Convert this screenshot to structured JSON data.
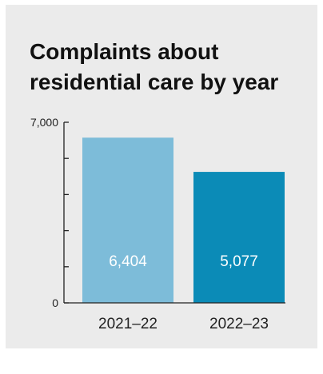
{
  "chart_data": {
    "type": "bar",
    "title": "Complaints about residential care by year",
    "categories": [
      "2021–22",
      "2022–23"
    ],
    "values": [
      6404,
      5077
    ],
    "value_labels": [
      "6,404",
      "5,077"
    ],
    "y_tick_labels": [
      {
        "value": 0,
        "label": "0"
      },
      {
        "value": 7000,
        "label": "7,000"
      }
    ],
    "y_minor_ticks": [
      1400,
      2800,
      4200,
      5600
    ],
    "ylim": [
      0,
      7000
    ],
    "xlabel": "",
    "ylabel": "",
    "grid": false,
    "legend": "none",
    "colors": [
      "#7dbcd9",
      "#0b8bb7"
    ],
    "label_color": "#ffffff",
    "axis_color": "#222222",
    "background": "#ebebeb"
  }
}
